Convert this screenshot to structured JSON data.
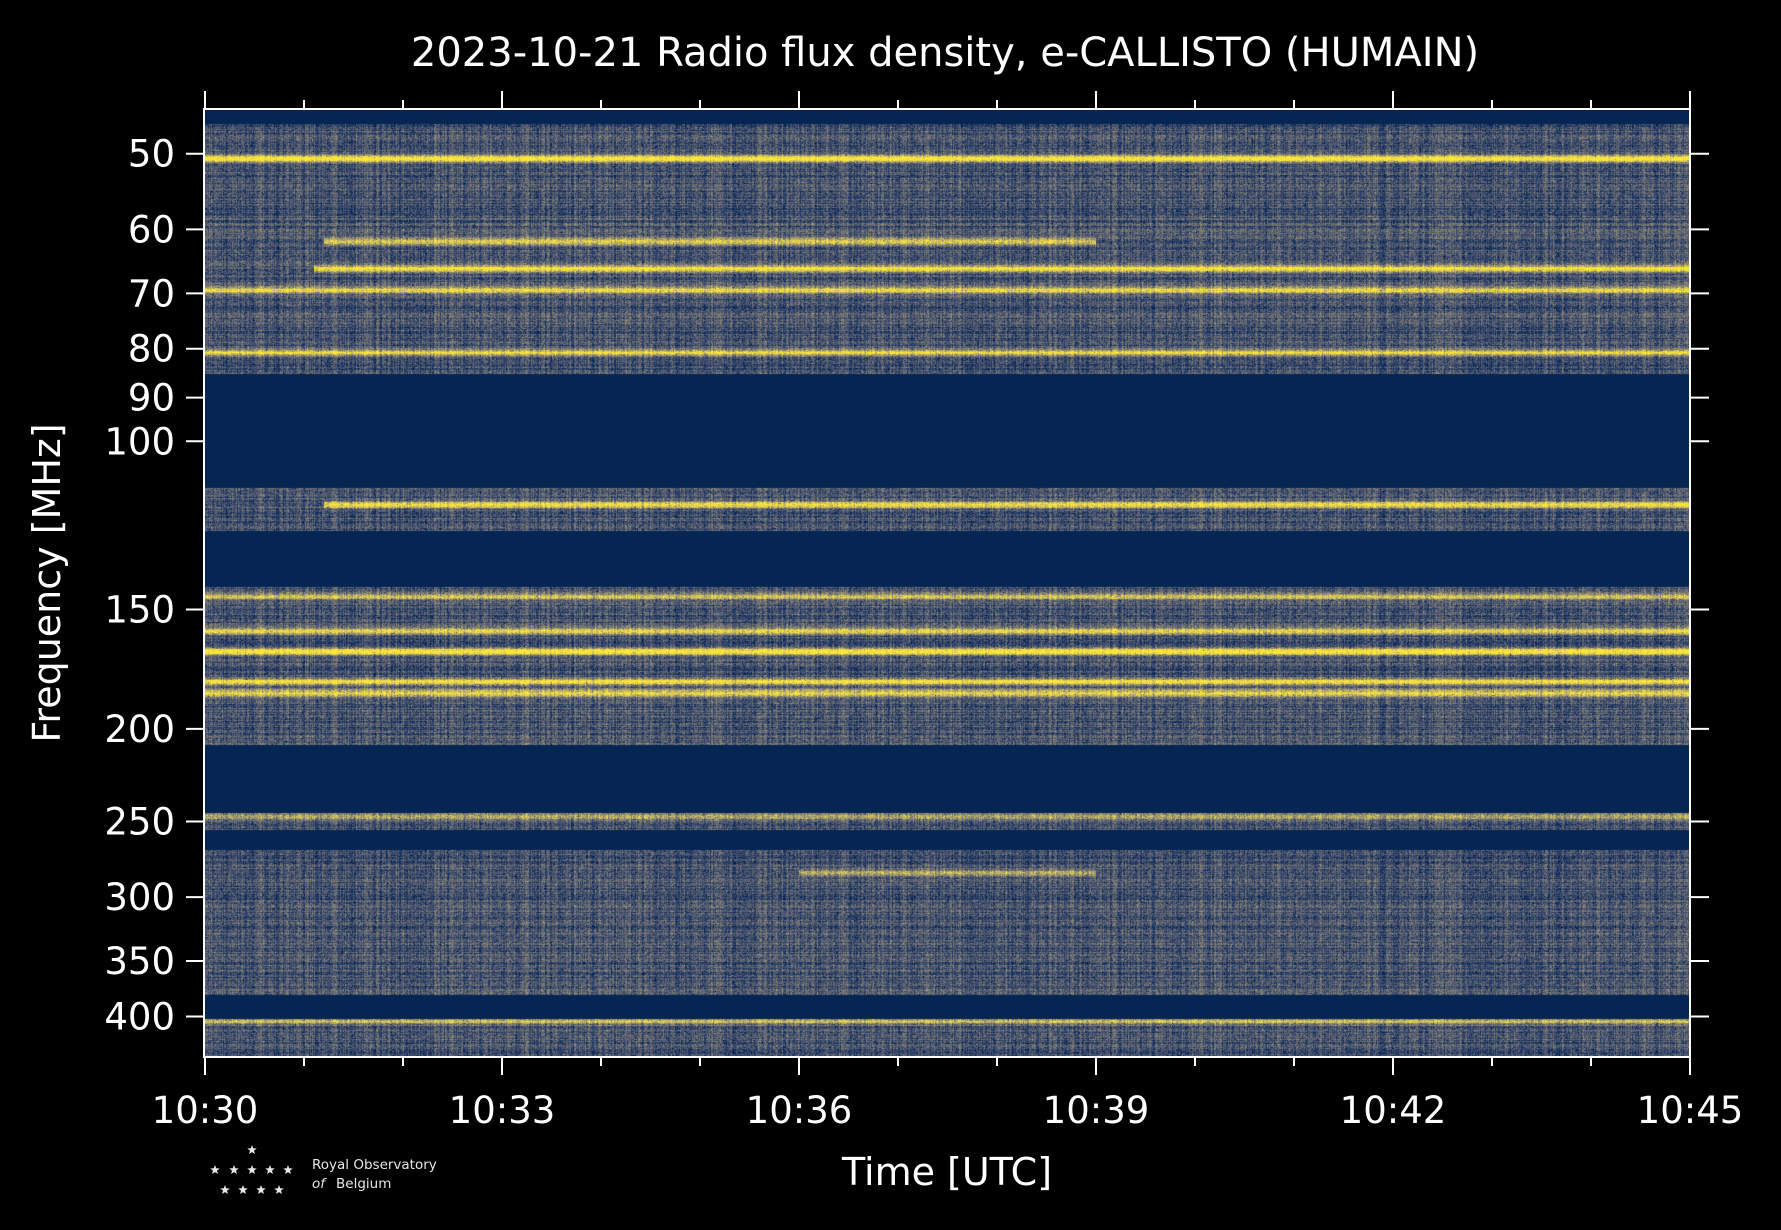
{
  "chart_data": {
    "type": "heatmap",
    "title": "2023-10-21 Radio flux density, e-CALLISTO (HUMAIN)",
    "xlabel": "Time [UTC]",
    "ylabel": "Frequency [MHz]",
    "x_tick_labels": [
      "10:30",
      "10:33",
      "10:36",
      "10:39",
      "10:42",
      "10:45"
    ],
    "x_range_minutes": [
      0,
      15
    ],
    "y_scale": "log",
    "y_range": [
      45,
      440
    ],
    "y_ticks": [
      50,
      60,
      70,
      80,
      90,
      100,
      150,
      200,
      250,
      300,
      350,
      400
    ],
    "colormap": [
      "#00224e",
      "#2a3f6c",
      "#575c6d",
      "#7d7c78",
      "#a8a06d",
      "#d6c55a",
      "#fde737"
    ],
    "empty_bands_mhz": [
      [
        85,
        112
      ],
      [
        124,
        142
      ],
      [
        208,
        245
      ],
      [
        255,
        268
      ],
      [
        380,
        402
      ]
    ],
    "bright_lines_mhz": [
      {
        "f": 50.6,
        "intensity": 0.95,
        "t_start": 0,
        "t_end": 15
      },
      {
        "f": 61.8,
        "intensity": 0.7,
        "t_start": 1.2,
        "t_end": 9
      },
      {
        "f": 66.0,
        "intensity": 0.85,
        "t_start": 1.1,
        "t_end": 15
      },
      {
        "f": 69.5,
        "intensity": 0.75,
        "t_start": 0,
        "t_end": 15
      },
      {
        "f": 80.8,
        "intensity": 0.7,
        "t_start": 0,
        "t_end": 15
      },
      {
        "f": 116.5,
        "intensity": 0.8,
        "t_start": 1.2,
        "t_end": 15
      },
      {
        "f": 145.5,
        "intensity": 0.55,
        "t_start": 0,
        "t_end": 15
      },
      {
        "f": 158.0,
        "intensity": 0.65,
        "t_start": 0,
        "t_end": 15
      },
      {
        "f": 166.0,
        "intensity": 0.95,
        "t_start": 0,
        "t_end": 15
      },
      {
        "f": 178.5,
        "intensity": 0.8,
        "t_start": 0,
        "t_end": 15
      },
      {
        "f": 183.5,
        "intensity": 0.75,
        "t_start": 0,
        "t_end": 15
      },
      {
        "f": 247.0,
        "intensity": 0.45,
        "t_start": 0,
        "t_end": 15
      },
      {
        "f": 283.0,
        "intensity": 0.5,
        "t_start": 6,
        "t_end": 9
      },
      {
        "f": 405.0,
        "intensity": 0.5,
        "t_start": 0,
        "t_end": 15
      }
    ]
  },
  "logo": {
    "line1": "Royal Observatory",
    "line2_italic": "of",
    "line2": "Belgium"
  }
}
